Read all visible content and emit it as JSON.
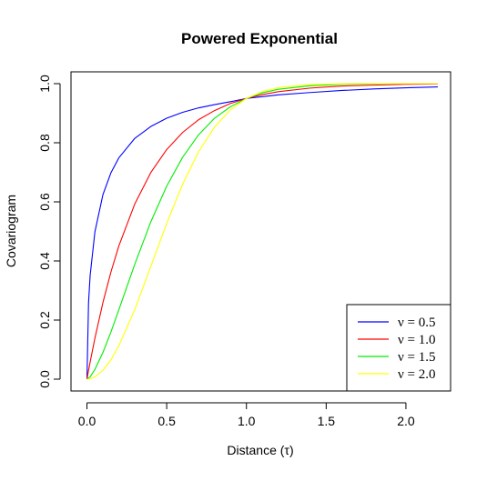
{
  "chart_data": {
    "type": "line",
    "title": "Powered Exponential",
    "xlabel": "Distance (τ)",
    "ylabel": "Covariogram",
    "xlim": [
      -0.1,
      2.28
    ],
    "ylim": [
      -0.04,
      1.04
    ],
    "xticks": [
      0.0,
      0.5,
      1.0,
      1.5,
      2.0
    ],
    "xtick_labels": [
      "0.0",
      "0.5",
      "1.0",
      "1.5",
      "2.0"
    ],
    "yticks": [
      0.0,
      0.2,
      0.4,
      0.6,
      0.8,
      1.0
    ],
    "ytick_labels": [
      "0.0",
      "0.2",
      "0.4",
      "0.6",
      "0.8",
      "1.0"
    ],
    "grid": false,
    "legend_position": "bottom-right",
    "x": [
      0.0,
      0.01,
      0.02,
      0.05,
      0.1,
      0.15,
      0.2,
      0.3,
      0.4,
      0.5,
      0.6,
      0.7,
      0.8,
      0.9,
      1.0,
      1.1,
      1.2,
      1.4,
      1.6,
      1.8,
      2.0,
      2.2
    ],
    "series": [
      {
        "name": "ν = 0.5",
        "color": "#0000ff",
        "values": [
          0.0,
          0.259,
          0.351,
          0.499,
          0.624,
          0.698,
          0.749,
          0.815,
          0.855,
          0.883,
          0.903,
          0.918,
          0.929,
          0.939,
          0.95,
          0.956,
          0.962,
          0.97,
          0.977,
          0.982,
          0.986,
          0.989
        ]
      },
      {
        "name": "ν = 1.0",
        "color": "#ff0000",
        "values": [
          0.0,
          0.03,
          0.058,
          0.139,
          0.259,
          0.362,
          0.451,
          0.593,
          0.699,
          0.777,
          0.835,
          0.878,
          0.909,
          0.933,
          0.95,
          0.963,
          0.973,
          0.985,
          0.992,
          0.995,
          0.998,
          0.999
        ]
      },
      {
        "name": "ν = 1.5",
        "color": "#00ee00",
        "values": [
          0.0,
          0.003,
          0.008,
          0.033,
          0.09,
          0.159,
          0.235,
          0.389,
          0.532,
          0.653,
          0.751,
          0.827,
          0.883,
          0.922,
          0.95,
          0.969,
          0.981,
          0.993,
          0.998,
          0.999,
          1.0,
          1.0
        ]
      },
      {
        "name": "ν = 2.0",
        "color": "#ffff00",
        "values": [
          0.0,
          0.0003,
          0.0012,
          0.0075,
          0.03,
          0.065,
          0.113,
          0.236,
          0.381,
          0.527,
          0.66,
          0.77,
          0.853,
          0.912,
          0.95,
          0.973,
          0.987,
          0.997,
          0.9995,
          1.0,
          1.0,
          1.0
        ]
      }
    ]
  }
}
